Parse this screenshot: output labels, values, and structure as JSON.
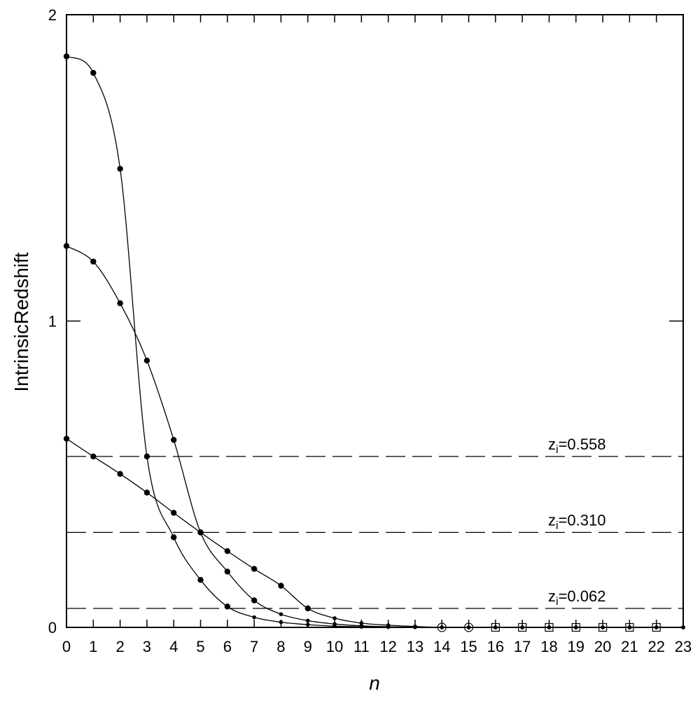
{
  "chart_data": {
    "type": "line",
    "xlabel": "n",
    "ylabel": "IntrinsicRedshift",
    "xlim": [
      0,
      23
    ],
    "ylim": [
      0,
      2
    ],
    "x_ticks": [
      "0",
      "1",
      "2",
      "3",
      "4",
      "5",
      "6",
      "7",
      "8",
      "9",
      "10",
      "11",
      "12",
      "13",
      "14",
      "15",
      "16",
      "17",
      "18",
      "19",
      "20",
      "21",
      "22",
      "23"
    ],
    "y_ticks": [
      "0",
      "1",
      "2"
    ],
    "grid": false,
    "legend": "none",
    "reference_lines": [
      {
        "y": 0.558,
        "label_prefix": "z",
        "label_sub": "i",
        "label_value": "=0.558"
      },
      {
        "y": 0.31,
        "label_prefix": "z",
        "label_sub": "i",
        "label_value": "=0.310"
      },
      {
        "y": 0.062,
        "label_prefix": "z",
        "label_sub": "i",
        "label_value": "=0.062"
      }
    ],
    "series": [
      {
        "x": [
          0,
          1,
          2,
          3,
          4,
          5,
          6,
          7,
          8,
          9,
          10,
          11,
          12,
          13,
          14,
          15,
          16,
          17,
          18,
          19,
          20,
          21,
          22,
          23
        ],
        "values": [
          1.864,
          1.81,
          1.497,
          0.558,
          0.294,
          0.155,
          0.068,
          0.033,
          0.017,
          0.009,
          0.004,
          0.002,
          0.001,
          0.0005,
          0,
          0,
          0,
          0,
          0,
          0,
          0,
          0,
          0,
          0
        ]
      },
      {
        "x": [
          0,
          1,
          2,
          3,
          4,
          5,
          6,
          7,
          8,
          9,
          10,
          11,
          12,
          13,
          14,
          15,
          16,
          17,
          18,
          19,
          20,
          21,
          22,
          23
        ],
        "values": [
          1.245,
          1.194,
          1.058,
          0.871,
          0.612,
          0.31,
          0.182,
          0.088,
          0.043,
          0.022,
          0.011,
          0.005,
          0.002,
          0.001,
          0,
          0,
          0,
          0,
          0,
          0,
          0,
          0,
          0,
          0
        ]
      },
      {
        "x": [
          0,
          1,
          2,
          3,
          4,
          5,
          6,
          7,
          8,
          9,
          10,
          11,
          12,
          13,
          14,
          15,
          16,
          17,
          18,
          19,
          20,
          21,
          22,
          23
        ],
        "values": [
          0.616,
          0.558,
          0.501,
          0.44,
          0.374,
          0.31,
          0.249,
          0.191,
          0.136,
          0.062,
          0.03,
          0.014,
          0.007,
          0.003,
          0,
          0,
          0,
          0,
          0,
          0,
          0,
          0,
          0,
          0
        ]
      }
    ],
    "open_markers": {
      "circles_x": [
        14,
        15
      ],
      "squares_x": [
        16,
        17,
        18,
        19,
        20,
        21,
        22
      ]
    },
    "colors": {
      "line": "#000000",
      "background": "#ffffff"
    }
  }
}
